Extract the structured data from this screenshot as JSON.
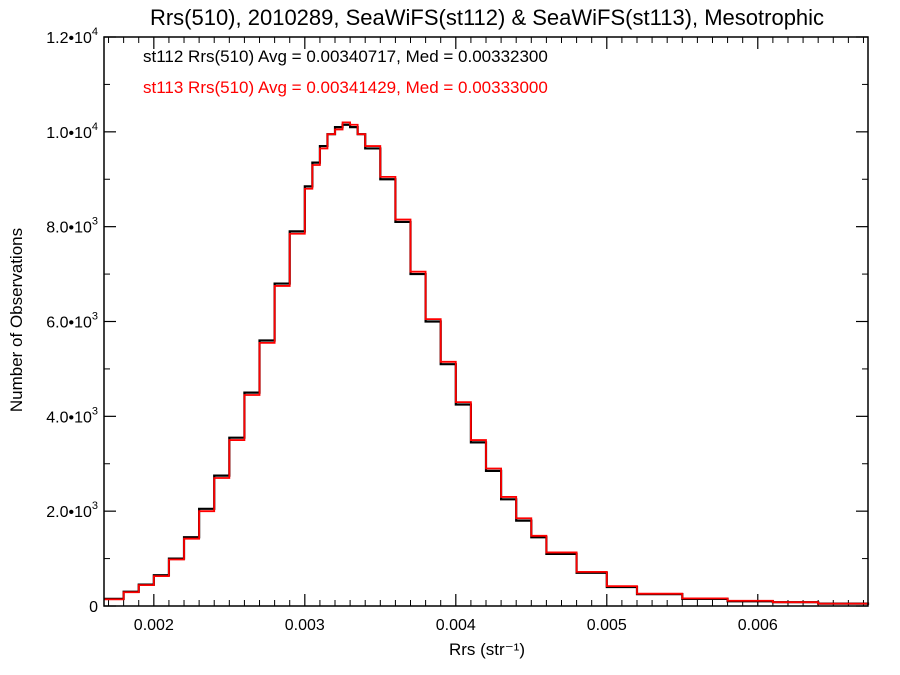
{
  "chart_data": {
    "type": "line",
    "title": "Rrs(510), 2010289, SeaWiFS(st112) & SeaWiFS(st113), Mesotrophic",
    "xlabel": "Rrs (str⁻¹)",
    "ylabel": "Number of Observations",
    "xlim": [
      0.00167,
      0.00673
    ],
    "ylim": [
      0,
      12000
    ],
    "x_ticks": [
      {
        "value": 0.002,
        "label": "0.002"
      },
      {
        "value": 0.003,
        "label": "0.003"
      },
      {
        "value": 0.004,
        "label": "0.004"
      },
      {
        "value": 0.005,
        "label": "0.005"
      },
      {
        "value": 0.006,
        "label": "0.006"
      }
    ],
    "y_ticks": [
      {
        "value": 0,
        "mant": "0",
        "exp": ""
      },
      {
        "value": 2000,
        "mant": "2.0•10",
        "exp": "3"
      },
      {
        "value": 4000,
        "mant": "4.0•10",
        "exp": "3"
      },
      {
        "value": 6000,
        "mant": "6.0•10",
        "exp": "3"
      },
      {
        "value": 8000,
        "mant": "8.0•10",
        "exp": "3"
      },
      {
        "value": 10000,
        "mant": "1.0•10",
        "exp": "4"
      },
      {
        "value": 12000,
        "mant": "1.2•10",
        "exp": "4"
      }
    ],
    "annotations": [
      {
        "text": "st112 Rrs(510) Avg = 0.00340717, Med = 0.00332300",
        "color": "#000000"
      },
      {
        "text": "st113 Rrs(510) Avg = 0.00341429, Med = 0.00333000",
        "color": "#ff0000"
      }
    ],
    "series": [
      {
        "color": "#000000",
        "x": [
          0.00167,
          0.0018,
          0.0019,
          0.002,
          0.0021,
          0.0022,
          0.0023,
          0.0024,
          0.0025,
          0.0026,
          0.0027,
          0.0028,
          0.0029,
          0.003,
          0.00305,
          0.0031,
          0.00315,
          0.0032,
          0.00325,
          0.0033,
          0.00335,
          0.0034,
          0.0035,
          0.0036,
          0.0037,
          0.0038,
          0.0039,
          0.004,
          0.0041,
          0.0042,
          0.0043,
          0.0044,
          0.0045,
          0.0046,
          0.0048,
          0.005,
          0.0052,
          0.0055,
          0.0058,
          0.0061,
          0.0064,
          0.00673
        ],
        "y": [
          150,
          300,
          450,
          650,
          1000,
          1450,
          2050,
          2750,
          3550,
          4500,
          5600,
          6800,
          7900,
          8850,
          9350,
          9700,
          9950,
          10100,
          10150,
          10100,
          9950,
          9650,
          9000,
          8100,
          7000,
          6000,
          5100,
          4250,
          3450,
          2850,
          2250,
          1800,
          1450,
          1100,
          700,
          400,
          250,
          150,
          100,
          80,
          50,
          20
        ]
      },
      {
        "color": "#ff0000",
        "x": [
          0.00167,
          0.0018,
          0.0019,
          0.002,
          0.0021,
          0.0022,
          0.0023,
          0.0024,
          0.0025,
          0.0026,
          0.0027,
          0.0028,
          0.0029,
          0.003,
          0.00305,
          0.0031,
          0.00315,
          0.0032,
          0.00325,
          0.0033,
          0.00335,
          0.0034,
          0.0035,
          0.0036,
          0.0037,
          0.0038,
          0.0039,
          0.004,
          0.0041,
          0.0042,
          0.0043,
          0.0044,
          0.0045,
          0.0046,
          0.0048,
          0.005,
          0.0052,
          0.0055,
          0.0058,
          0.0061,
          0.0064,
          0.00673
        ],
        "y": [
          140,
          290,
          440,
          630,
          980,
          1420,
          2000,
          2700,
          3500,
          4450,
          5550,
          6750,
          7850,
          8800,
          9300,
          9650,
          9950,
          10050,
          10200,
          10150,
          9950,
          9700,
          9050,
          8150,
          7050,
          6050,
          5150,
          4300,
          3500,
          2900,
          2300,
          1850,
          1480,
          1130,
          720,
          420,
          260,
          160,
          110,
          80,
          50,
          20
        ]
      }
    ]
  }
}
